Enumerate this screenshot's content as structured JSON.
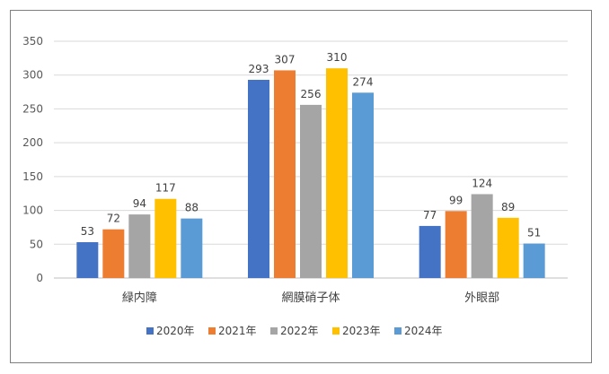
{
  "chart_data": {
    "type": "bar",
    "title": "",
    "xlabel": "",
    "ylabel": "",
    "ylim": [
      0,
      350
    ],
    "yticks": [
      0,
      50,
      100,
      150,
      200,
      250,
      300,
      350
    ],
    "grid": true,
    "legend_position": "bottom",
    "categories": [
      "緑内障",
      "網膜硝子体",
      "外眼部"
    ],
    "series": [
      {
        "name": "2020年",
        "color": "#4472C4",
        "values": [
          53,
          293,
          77
        ]
      },
      {
        "name": "2021年",
        "color": "#ED7D31",
        "values": [
          72,
          307,
          99
        ]
      },
      {
        "name": "2022年",
        "color": "#A5A5A5",
        "values": [
          94,
          256,
          124
        ]
      },
      {
        "name": "2023年",
        "color": "#FFC000",
        "values": [
          117,
          310,
          89
        ]
      },
      {
        "name": "2024年",
        "color": "#5B9BD5",
        "values": [
          88,
          274,
          51
        ]
      }
    ],
    "data_labels": true
  }
}
